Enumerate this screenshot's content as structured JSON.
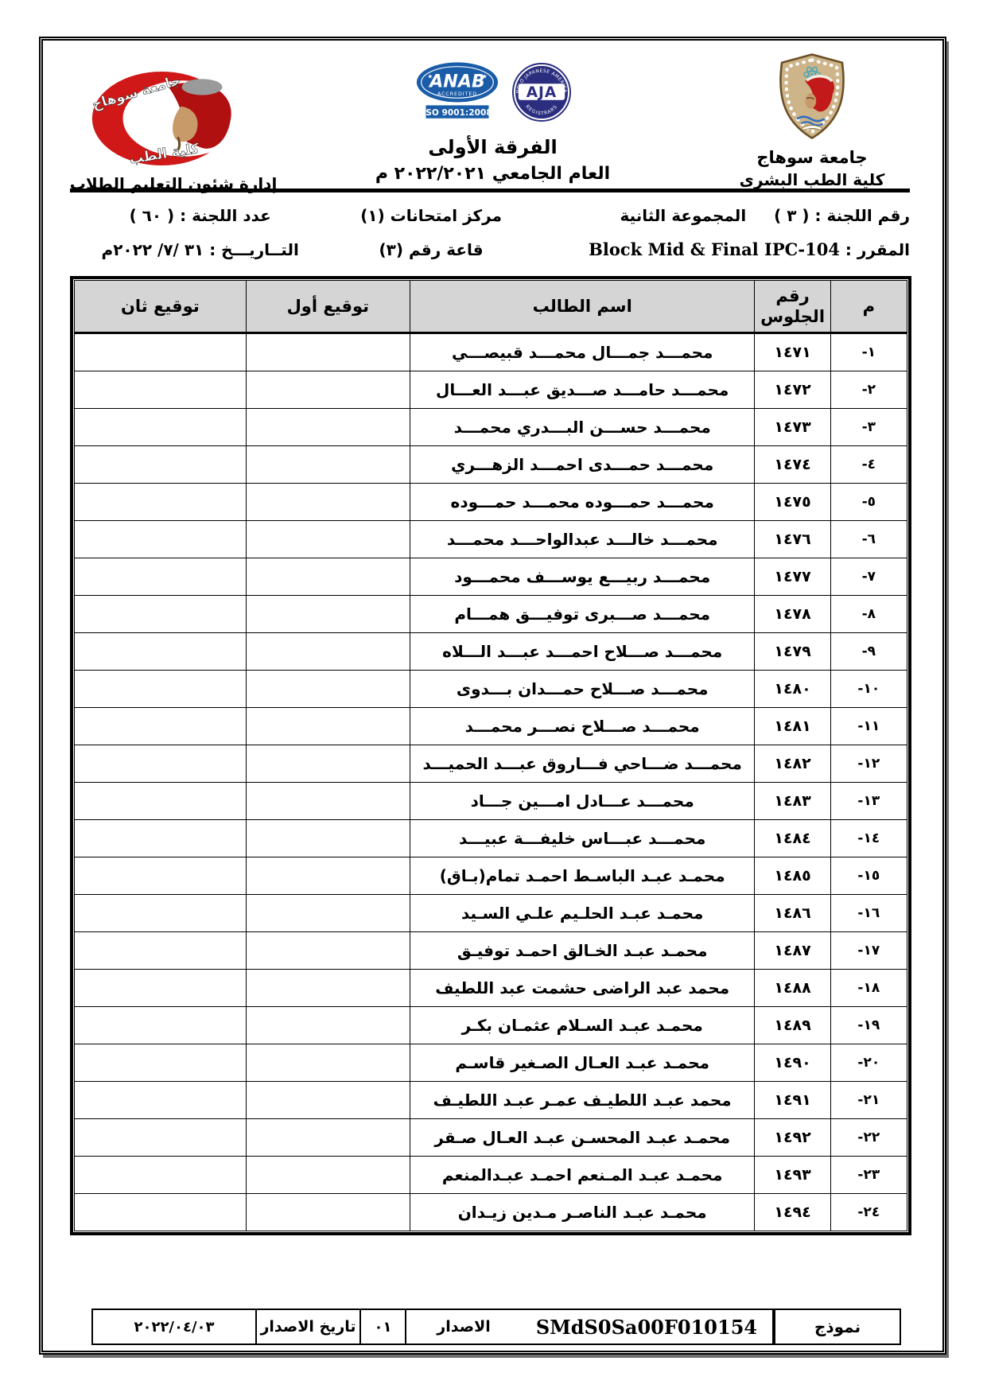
{
  "document": {
    "header": {
      "university_name": "جامعة سوهاج",
      "faculty_name": "كلية الطب البشرى",
      "department": "إدارة شئون التعليم الطلاب",
      "year_title": "الفرقة الأولى",
      "academic_year": "العام الجامعي ٢٠٢٢/٢٠٢١ م",
      "crescent_logo": {
        "top_text": "جامعة سوهاج",
        "bottom_text": "كلية الطب"
      },
      "anab_logo": {
        "name": "ANAB",
        "accredited": "ACCREDITED",
        "iso": "ISO 9001:2008"
      },
      "aja_logo": {
        "name": "AJA",
        "top_text": "ANGLO JAPANESE AMERICAN",
        "bottom_text": "REGISTRARS"
      }
    },
    "exam_info": {
      "committee_number": "رقم اللجنة : ( ٣ )",
      "group": "المجموعة الثانية",
      "exam_center": "مركز امتحانات (١)",
      "committee_count": "عدد اللجنة : ( ٦٠ )",
      "course_label": "المقرر :",
      "course_value": "Block Mid & Final IPC-104",
      "hall": "قاعة رقم (٣)",
      "date_label": "التــاريـــخ :",
      "date_value": "٣١ /٧/ ٢٠٢٢م"
    },
    "table": {
      "headers": {
        "index": "م",
        "seat_number": "رقم الجلوس",
        "student_name": "اسم الطالب",
        "first_signature": "توقيع أول",
        "second_signature": "توقيع ثان"
      },
      "rows": [
        {
          "index": "١-",
          "seat": "١٤٧١",
          "name": "محمـــد جمـــال محمـــد قبيصـــي"
        },
        {
          "index": "٢-",
          "seat": "١٤٧٢",
          "name": "محمـــد حامـــد صـــديق عبـــد العـــال"
        },
        {
          "index": "٣-",
          "seat": "١٤٧٣",
          "name": "محمـــد حســـن البـــدري محمـــد"
        },
        {
          "index": "٤-",
          "seat": "١٤٧٤",
          "name": "محمـــد حمـــدى احمـــد الزهـــري"
        },
        {
          "index": "٥-",
          "seat": "١٤٧٥",
          "name": "محمـــد حمـــوده محمـــد حمـــوده"
        },
        {
          "index": "٦-",
          "seat": "١٤٧٦",
          "name": "محمـــد خالـــد عبدالواحـــد محمـــد"
        },
        {
          "index": "٧-",
          "seat": "١٤٧٧",
          "name": "محمـــد ربيـــع يوســـف محمـــود"
        },
        {
          "index": "٨-",
          "seat": "١٤٧٨",
          "name": "محمـــد صـــبرى توفيـــق همـــام"
        },
        {
          "index": "٩-",
          "seat": "١٤٧٩",
          "name": "محمـــد صـــلاح احمـــد عبـــد الـــلاه"
        },
        {
          "index": "١٠-",
          "seat": "١٤٨٠",
          "name": "محمـــد صـــلاح حمـــدان بـــدوى"
        },
        {
          "index": "١١-",
          "seat": "١٤٨١",
          "name": "محمـــد صـــلاح نصـــر محمـــد"
        },
        {
          "index": "١٢-",
          "seat": "١٤٨٢",
          "name": "محمـــد ضـــاحي فـــاروق عبـــد الحميـــد"
        },
        {
          "index": "١٣-",
          "seat": "١٤٨٣",
          "name": "محمـــد عـــادل امـــين جـــاد"
        },
        {
          "index": "١٤-",
          "seat": "١٤٨٤",
          "name": "محمـــد عبـــاس خليفـــة عبيـــد"
        },
        {
          "index": "١٥-",
          "seat": "١٤٨٥",
          "name": "محمـد عبـد الباسـط احمـد تمام(بـاق)"
        },
        {
          "index": "١٦-",
          "seat": "١٤٨٦",
          "name": "محمـد عبـد الحلـيم علـي السـيد"
        },
        {
          "index": "١٧-",
          "seat": "١٤٨٧",
          "name": "محمـد عبـد الخـالق احمـد توفيـق"
        },
        {
          "index": "١٨-",
          "seat": "١٤٨٨",
          "name": "محمد عبد الراضى حشمت عبد اللطيف"
        },
        {
          "index": "١٩-",
          "seat": "١٤٨٩",
          "name": "محمـد عبـد السـلام عثمـان بكـر"
        },
        {
          "index": "٢٠-",
          "seat": "١٤٩٠",
          "name": "محمـد عبـد العـال الصـغير قاسـم"
        },
        {
          "index": "٢١-",
          "seat": "١٤٩١",
          "name": "محمد عبـد اللطيـف عمـر عبـد اللطيـف"
        },
        {
          "index": "٢٢-",
          "seat": "١٤٩٢",
          "name": "محمـد عبـد المحسـن عبـد العـال صـقر"
        },
        {
          "index": "٢٣-",
          "seat": "١٤٩٣",
          "name": "محمـد عبـد المـنعم احمـد عبـدالمنعم"
        },
        {
          "index": "٢٤-",
          "seat": "١٤٩٤",
          "name": "محمـد عبـد الناصـر مـدين زيـدان"
        }
      ]
    },
    "footer": {
      "form_label": "نموذج",
      "form_code": "SMdS0Sa00F010154",
      "version_label": "الاصدار",
      "version_value": "٠١",
      "issue_date_label": "تاريخ الاصدار",
      "issue_date_value": "٢٠٢٢/٠٤/٠٣"
    },
    "colors": {
      "header_row_bg": "#d5d5d5",
      "anab_blue": "#1a5ca8",
      "aja_navy": "#2b2e7f",
      "crescent_red": "#d01818",
      "shield_tan": "#cdb489"
    }
  }
}
